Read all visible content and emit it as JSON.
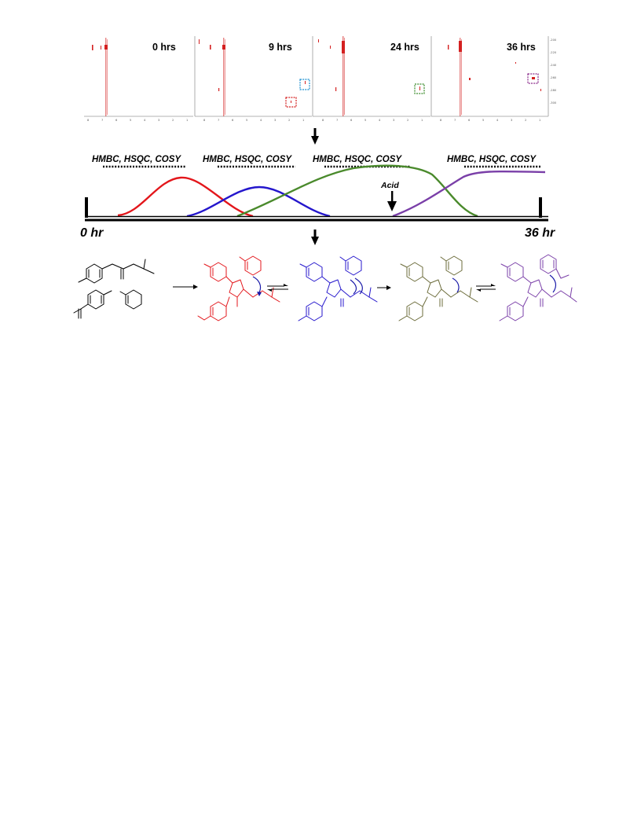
{
  "panels": [
    {
      "time_label": "0 hrs"
    },
    {
      "time_label": "9 hrs"
    },
    {
      "time_label": "24 hrs"
    },
    {
      "time_label": "36 hrs"
    }
  ],
  "techniques": [
    {
      "label": "HMBC, HSQC, COSY"
    },
    {
      "label": "HMBC, HSQC, COSY"
    },
    {
      "label": "HMBC, HSQC, COSY"
    },
    {
      "label": "HMBC, HSQC, COSY"
    }
  ],
  "timeline": {
    "start_label": "0 hr",
    "end_label": "36 hr",
    "acid_label": "Acid"
  },
  "colors": {
    "stage1": "#e3161b",
    "stage2": "#2416cc",
    "stage3": "#4a8a2c",
    "stage4": "#7a3fa8",
    "stage3_structure": "#6b6b3a",
    "reactant": "#000000",
    "nmr_peaks": "#d42020",
    "box_blue": "#1a8fd0",
    "box_red": "#d42020",
    "box_green": "#3a8a2a",
    "box_purple": "#8a2a8a"
  },
  "arrows": [
    "down-arrow",
    "down-arrow"
  ]
}
